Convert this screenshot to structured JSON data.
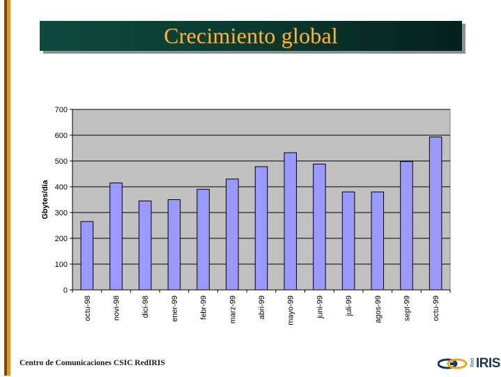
{
  "slide": {
    "title": "Crecimiento global",
    "footer": "Centro de Comunicaciones CSIC  RedIRIS",
    "logo": {
      "small_text": "Red",
      "main_text": "IRIS"
    }
  },
  "colors": {
    "bar_fill": "#9999ff",
    "plot_background": "#c0c0c0",
    "title_text": "#f3b53d",
    "title_background": "#0a3a30"
  },
  "chart_data": {
    "type": "bar",
    "title": "",
    "xlabel": "",
    "ylabel": "Gbytes/dia",
    "ylim": [
      0,
      700
    ],
    "yticks": [
      0,
      100,
      200,
      300,
      400,
      500,
      600,
      700
    ],
    "grid": true,
    "legend": "none",
    "categories": [
      "octu-98",
      "novi-98",
      "dici-98",
      "ener-99",
      "febr-99",
      "marz-99",
      "abri-99",
      "mayo-99",
      "juni-99",
      "juli-99",
      "agos-99",
      "sept-99",
      "octu-99"
    ],
    "values": [
      265,
      415,
      345,
      350,
      390,
      430,
      478,
      532,
      488,
      380,
      380,
      498,
      593
    ]
  }
}
